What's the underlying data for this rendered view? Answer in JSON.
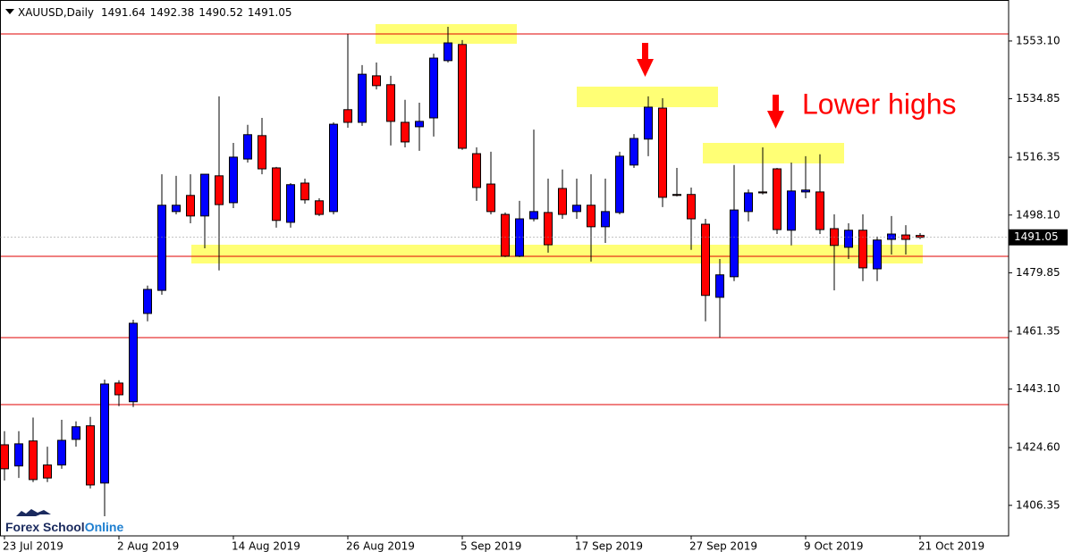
{
  "chart_data": {
    "type": "candlestick",
    "title": "XAUUSD,Daily",
    "categories": [
      "23 Jul 2019",
      null,
      null,
      null,
      null,
      null,
      null,
      null,
      "2 Aug 2019",
      null,
      null,
      null,
      null,
      null,
      null,
      null,
      "14 Aug 2019",
      null,
      null,
      null,
      null,
      null,
      null,
      null,
      "26 Aug 2019",
      null,
      null,
      null,
      null,
      null,
      null,
      null,
      "5 Sep 2019",
      null,
      null,
      null,
      null,
      null,
      null,
      null,
      "17 Sep 2019",
      null,
      null,
      null,
      null,
      null,
      null,
      null,
      "27 Sep 2019",
      null,
      null,
      null,
      null,
      null,
      null,
      null,
      "9 Oct 2019",
      null,
      null,
      null,
      null,
      null,
      null,
      null,
      "21 Oct 2019"
    ],
    "open": [
      1425.5,
      1418.8,
      1426.7,
      1419.1,
      1419.1,
      1427.2,
      1431.5,
      1413.4,
      1445.0,
      1439.1,
      1467.0,
      1474.3,
      1499.2,
      1504.3,
      1497.8,
      1510.5,
      1502.0,
      1515.8,
      1523.2,
      1513.0,
      1495.8,
      1508.2,
      1502.6,
      1499.2,
      1531.4,
      1527.4,
      1542.1,
      1539.3,
      1527.4,
      1526.0,
      1528.8,
      1546.9,
      1552.0,
      1517.5,
      1507.9,
      1498.3,
      1485.1,
      1496.9,
      1498.9,
      1506.5,
      1499.2,
      1501.2,
      1494.4,
      1498.9,
      1513.9,
      1522.1,
      1531.9,
      1504.6,
      1504.6,
      1495.2,
      1472.1,
      1478.6,
      1499.2,
      1505.4,
      1512.7,
      1493.3,
      1505.4,
      1505.4,
      1493.8,
      1487.9,
      1493.3,
      1481.1,
      1490.4,
      1491.8,
      1491.64
    ],
    "high": [
      1429.8,
      1429.8,
      1434.1,
      1424.9,
      1433.4,
      1432.9,
      1434.3,
      1446.1,
      1445.9,
      1465.0,
      1475.8,
      1511.0,
      1510.5,
      1511.0,
      1511.0,
      1535.6,
      1520.9,
      1526.6,
      1528.8,
      1513.3,
      1508.2,
      1509.6,
      1503.4,
      1527.4,
      1555.3,
      1545.5,
      1546.3,
      1542.1,
      1534.5,
      1533.6,
      1549.1,
      1557.6,
      1553.4,
      1519.5,
      1518.1,
      1498.9,
      1502.6,
      1525.1,
      1509.6,
      1512.5,
      1509.6,
      1511.0,
      1509.6,
      1518.1,
      1523.7,
      1535.6,
      1535.0,
      1513.0,
      1506.8,
      1496.9,
      1484.2,
      1513.9,
      1506.2,
      1519.5,
      1513.0,
      1514.7,
      1516.7,
      1517.3,
      1498.3,
      1495.5,
      1498.3,
      1491.3,
      1497.8,
      1494.9,
      1492.38
    ],
    "low": [
      1414.2,
      1415.0,
      1413.7,
      1413.7,
      1417.9,
      1424.9,
      1411.7,
      1402.9,
      1437.7,
      1437.4,
      1464.5,
      1472.9,
      1498.3,
      1495.5,
      1487.6,
      1480.6,
      1500.3,
      1514.7,
      1511.0,
      1494.1,
      1494.1,
      1501.7,
      1497.8,
      1498.3,
      1525.7,
      1526.3,
      1537.8,
      1520.1,
      1519.5,
      1518.4,
      1522.9,
      1546.3,
      1518.7,
      1502.6,
      1498.3,
      1484.8,
      1484.8,
      1496.1,
      1486.2,
      1496.9,
      1496.9,
      1483.4,
      1489.3,
      1498.3,
      1513.0,
      1516.7,
      1500.6,
      1504.0,
      1487.1,
      1464.5,
      1459.4,
      1477.2,
      1496.1,
      1504.6,
      1492.1,
      1488.5,
      1503.4,
      1492.1,
      1474.3,
      1484.2,
      1477.2,
      1477.2,
      1485.6,
      1485.6,
      1490.52
    ],
    "close": [
      1417.9,
      1425.8,
      1414.5,
      1415.0,
      1426.9,
      1431.2,
      1412.8,
      1444.7,
      1441.3,
      1463.9,
      1474.6,
      1501.2,
      1501.2,
      1497.8,
      1511.0,
      1501.4,
      1516.4,
      1523.5,
      1512.7,
      1496.4,
      1507.7,
      1502.9,
      1498.3,
      1526.8,
      1527.4,
      1542.6,
      1539.0,
      1527.7,
      1521.2,
      1527.7,
      1547.7,
      1552.5,
      1519.2,
      1506.8,
      1499.2,
      1485.1,
      1496.9,
      1499.2,
      1488.7,
      1498.3,
      1501.2,
      1494.4,
      1499.2,
      1516.7,
      1522.3,
      1532.2,
      1503.7,
      1504.3,
      1496.9,
      1472.7,
      1479.2,
      1499.7,
      1505.1,
      1505.1,
      1493.5,
      1505.7,
      1506.0,
      1493.5,
      1488.5,
      1493.3,
      1481.4,
      1490.2,
      1492.1,
      1490.4,
      1491.05
    ],
    "up_color": "#0000ff",
    "down_color": "#ff0000",
    "ylim": [
      1396.7,
      1566.06
    ],
    "yticks": [
      1406.35,
      {
        "value": 1424.6,
        "label": "1424.60"
      },
      {
        "value": 1443.1,
        "label": "1443.10"
      },
      1461.35,
      1479.85,
      {
        "value": 1498.1,
        "label": "1498.10"
      },
      1516.35,
      1534.85,
      {
        "value": 1553.1,
        "label": "1553.10"
      }
    ],
    "annotation": "Lower highs",
    "brand": [
      "Forex School",
      "Online"
    ]
  }
}
